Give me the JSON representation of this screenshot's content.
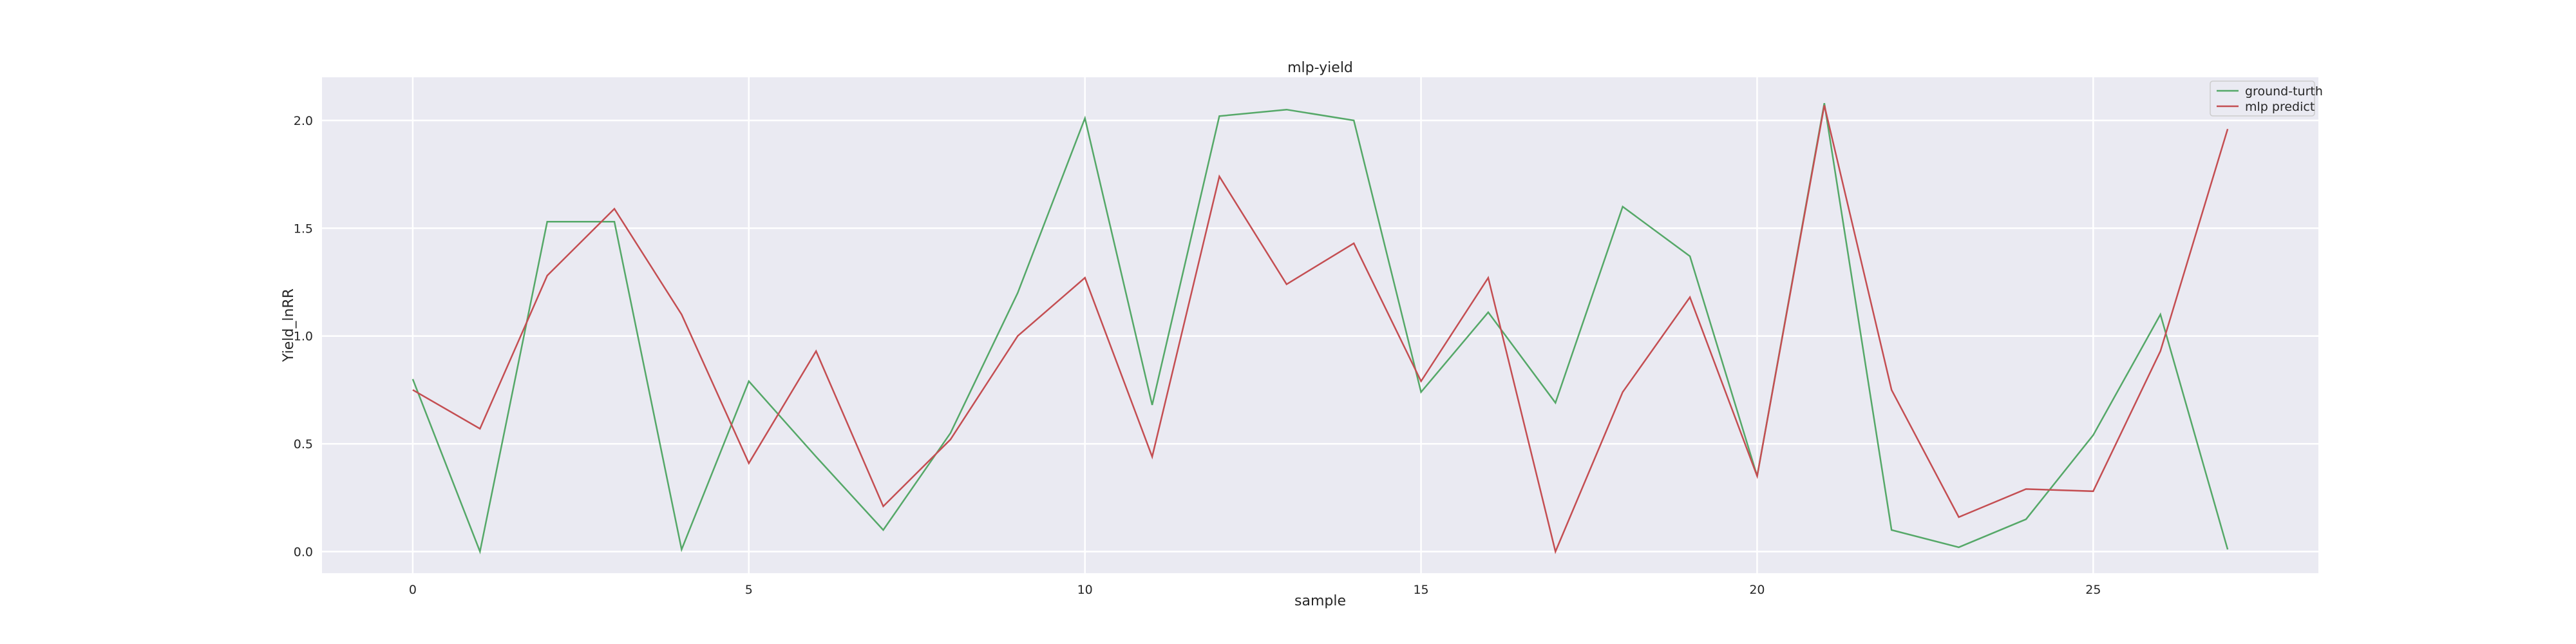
{
  "chart_data": {
    "type": "line",
    "title": "mlp-yield",
    "xlabel": "sample",
    "ylabel": "Yield_lnRR",
    "xlim": [
      -1.35,
      28.35
    ],
    "ylim": [
      -0.1,
      2.2
    ],
    "xticks": [
      0,
      5,
      10,
      15,
      20,
      25
    ],
    "yticks": [
      0.0,
      0.5,
      1.0,
      1.5,
      2.0
    ],
    "xtick_labels": [
      "0",
      "5",
      "10",
      "15",
      "20",
      "25"
    ],
    "ytick_labels": [
      "0.0",
      "0.5",
      "1.0",
      "1.5",
      "2.0"
    ],
    "grid": true,
    "legend_position": "top-right",
    "x": [
      0,
      1,
      2,
      3,
      4,
      5,
      6,
      7,
      8,
      9,
      10,
      11,
      12,
      13,
      14,
      15,
      16,
      17,
      18,
      19,
      20,
      21,
      22,
      23,
      24,
      25,
      26,
      27
    ],
    "series": [
      {
        "name": "ground-turth",
        "color": "#55a868",
        "values": [
          0.8,
          0.0,
          1.53,
          1.53,
          0.01,
          0.79,
          0.44,
          0.1,
          0.55,
          1.2,
          2.01,
          0.68,
          2.02,
          2.05,
          2.0,
          0.74,
          1.11,
          0.69,
          1.6,
          1.37,
          0.35,
          2.08,
          0.1,
          0.02,
          0.15,
          0.54,
          1.1,
          0.01
        ]
      },
      {
        "name": "mlp predict",
        "color": "#c44e52",
        "values": [
          0.75,
          0.57,
          1.28,
          1.59,
          1.1,
          0.41,
          0.93,
          0.21,
          0.52,
          1.0,
          1.27,
          0.44,
          1.74,
          1.24,
          1.43,
          0.79,
          1.27,
          0.0,
          0.74,
          1.18,
          0.35,
          2.07,
          0.75,
          0.16,
          0.29,
          0.28,
          0.93,
          1.96
        ]
      }
    ]
  }
}
